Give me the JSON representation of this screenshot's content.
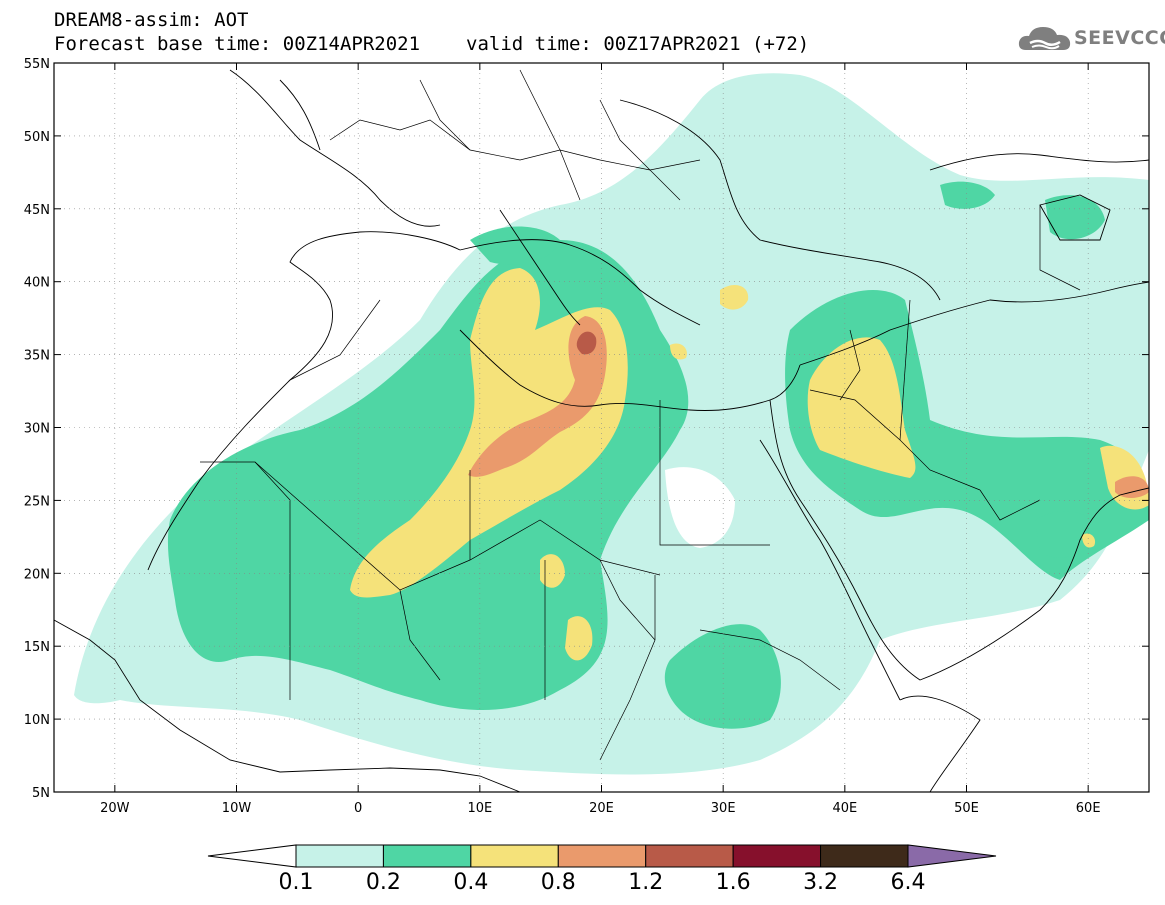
{
  "header": {
    "model_line": "DREAM8-assim: AOT",
    "base_time": "Forecast base time: 00Z14APR2021",
    "valid_time": "valid time: 00Z17APR2021 (+72)"
  },
  "logo": {
    "text": "SEEVCCC",
    "icon": "cloud-icon"
  },
  "map": {
    "lat_labels": [
      "55N",
      "50N",
      "45N",
      "40N",
      "35N",
      "30N",
      "25N",
      "20N",
      "15N",
      "10N",
      "5N"
    ],
    "lon_labels": [
      "20W",
      "10W",
      "0",
      "10E",
      "20E",
      "30E",
      "40E",
      "50E",
      "60E"
    ],
    "lon_range": [
      -25,
      65
    ],
    "lat_range": [
      5,
      55
    ],
    "grid": "dotted"
  },
  "colorbar": {
    "levels": [
      "0.1",
      "0.2",
      "0.4",
      "0.8",
      "1.2",
      "1.6",
      "3.2",
      "6.4"
    ],
    "colors": [
      "#c6f2e8",
      "#4fd6a4",
      "#f5e27a",
      "#ea9a6c",
      "#b85a48",
      "#86102c",
      "#3e2a1a"
    ],
    "under_color": "#ffffff",
    "over_color": "#8a6aa8"
  }
}
